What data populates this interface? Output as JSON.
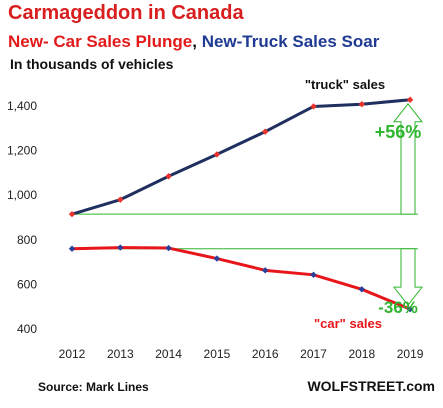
{
  "title": "Carmageddon  in Canada",
  "subtitle": {
    "part1": "New- Car Sales Plunge",
    "sep": ", ",
    "part2": "New-Truck Sales",
    "part3": " Soar"
  },
  "units_note": "In thousands of vehicles",
  "source": "Source: Mark Lines",
  "credit": "WOLFSTREET.com",
  "chart_data": {
    "type": "line",
    "categories": [
      "2012",
      "2013",
      "2014",
      "2015",
      "2016",
      "2017",
      "2018",
      "2019"
    ],
    "x": [
      2012,
      2013,
      2014,
      2015,
      2016,
      2017,
      2018,
      2019
    ],
    "ylim": [
      400,
      1500
    ],
    "yticks": [
      400,
      600,
      800,
      1000,
      1200,
      1400
    ],
    "ytick_labels": [
      "400",
      "600",
      "800",
      "1,000",
      "1,200",
      "1,400"
    ],
    "grid": false,
    "series": [
      {
        "name": "\"truck\" sales",
        "line_color": "#1f3060",
        "marker_color": "#e8322a",
        "values": [
          915,
          980,
          1085,
          1183,
          1285,
          1398,
          1408,
          1428
        ]
      },
      {
        "name": "\"car\" sales",
        "line_color": "#e8161b",
        "marker_color": "#2a3f9a",
        "values": [
          760,
          765,
          763,
          716,
          663,
          643,
          578,
          489
        ]
      }
    ],
    "annotations": [
      {
        "text": "+56%",
        "color": "#2fb62f"
      },
      {
        "text": "-36%",
        "color": "#2fb62f"
      }
    ]
  }
}
